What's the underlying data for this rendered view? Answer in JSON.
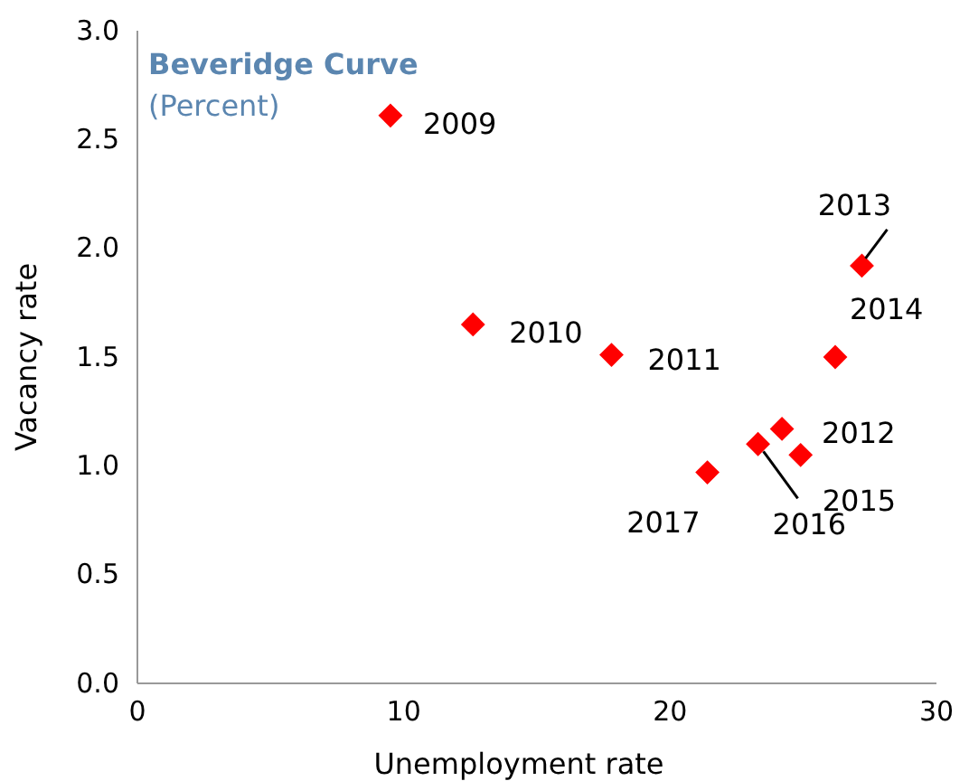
{
  "chart_data": {
    "type": "scatter",
    "title": "Beveridge Curve",
    "subtitle": "(Percent)",
    "xlabel": "Unemployment rate",
    "ylabel": "Vacancy rate",
    "x": [
      9.5,
      12.6,
      17.8,
      24.2,
      27.2,
      26.2,
      24.9,
      23.3,
      21.4
    ],
    "values": [
      2.61,
      1.65,
      1.51,
      1.17,
      1.92,
      1.5,
      1.05,
      1.1,
      0.97
    ],
    "color": "#ff0000",
    "marker": "diamond",
    "grid": false,
    "xlim": [
      0,
      30
    ],
    "xticks": [
      0,
      10,
      20,
      30
    ],
    "ylim": [
      0,
      3
    ],
    "yticks": [
      {
        "value": 0,
        "label": "0.0"
      },
      {
        "value": 0.5,
        "label": "0.5"
      },
      {
        "value": 1,
        "label": "1.0"
      },
      {
        "value": 1.5,
        "label": "1.5"
      },
      {
        "value": 2,
        "label": "2.0"
      },
      {
        "value": 2.5,
        "label": "2.5"
      },
      {
        "value": 3,
        "label": "3.0"
      }
    ],
    "annotations": [
      {
        "text": "2009",
        "x": 9.5,
        "y": 2.61
      },
      {
        "text": "2010",
        "x": 12.6,
        "y": 1.65
      },
      {
        "text": "2011",
        "x": 17.8,
        "y": 1.51
      },
      {
        "text": "2012",
        "x": 24.2,
        "y": 1.17
      },
      {
        "text": "2013",
        "x": 27.2,
        "y": 1.92
      },
      {
        "text": "2014",
        "x": 26.2,
        "y": 1.5
      },
      {
        "text": "2015",
        "x": 24.9,
        "y": 1.05
      },
      {
        "text": "2016",
        "x": 23.3,
        "y": 1.1
      },
      {
        "text": "2017",
        "x": 21.4,
        "y": 0.97
      }
    ]
  }
}
